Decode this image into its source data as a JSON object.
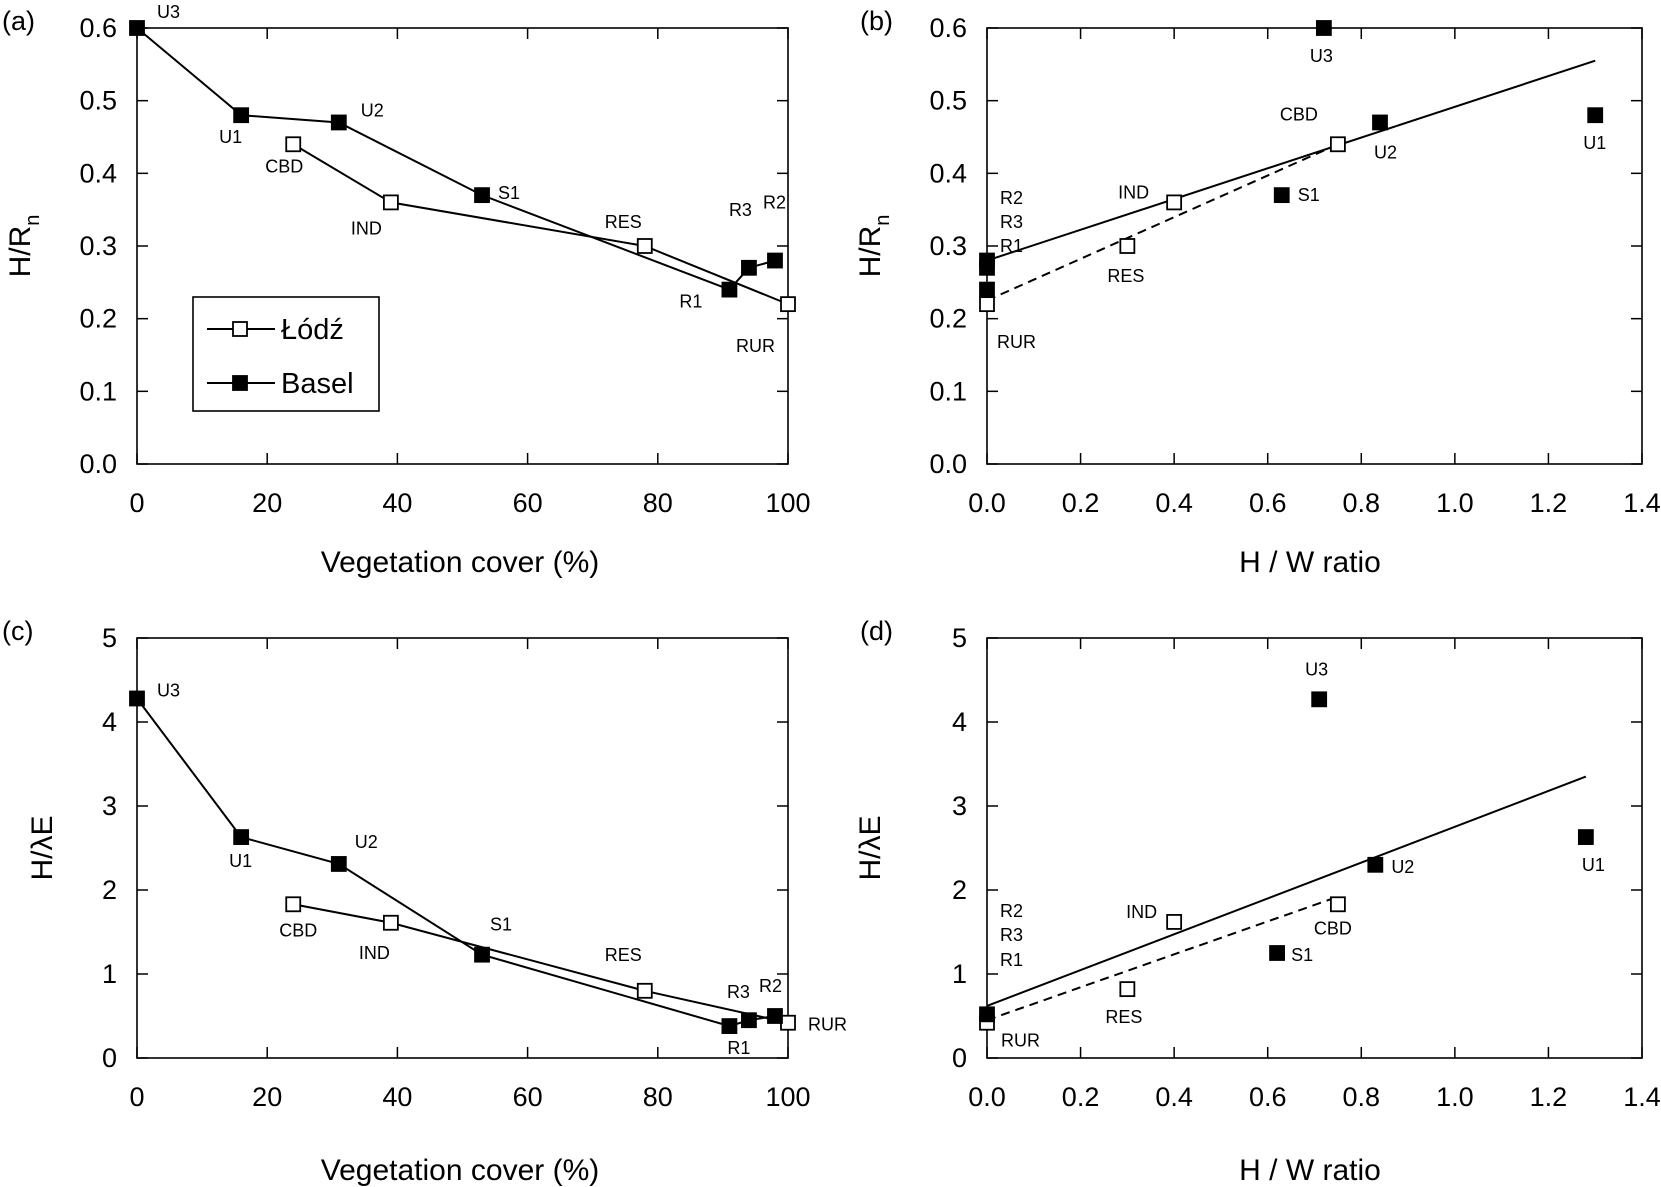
{
  "chart_data": [
    {
      "panel": "(a)",
      "type": "line",
      "xlabel": "Vegetation cover (%)",
      "ylabel": "H/R",
      "ylabel_sub": "n",
      "xlim": [
        0,
        100
      ],
      "ylim": [
        0,
        0.6
      ],
      "xticks": [
        "0",
        "20",
        "40",
        "60",
        "80",
        "100"
      ],
      "yticks": [
        "0.0",
        "0.1",
        "0.2",
        "0.3",
        "0.4",
        "0.5",
        "0.6"
      ],
      "legend": {
        "position": "lower-left",
        "entries": [
          "Łódź",
          "Basel"
        ]
      },
      "series": [
        {
          "name": "Łódź",
          "marker": "open-square",
          "points": [
            {
              "label": "CBD",
              "x": 24,
              "y": 0.44
            },
            {
              "label": "IND",
              "x": 39,
              "y": 0.36
            },
            {
              "label": "RES",
              "x": 78,
              "y": 0.3
            },
            {
              "label": "RUR",
              "x": 100,
              "y": 0.22
            }
          ]
        },
        {
          "name": "Basel",
          "marker": "filled-square",
          "points": [
            {
              "label": "U3",
              "x": 0,
              "y": 0.6
            },
            {
              "label": "U1",
              "x": 16,
              "y": 0.48
            },
            {
              "label": "U2",
              "x": 31,
              "y": 0.47
            },
            {
              "label": "S1",
              "x": 53,
              "y": 0.37
            },
            {
              "label": "R1",
              "x": 91,
              "y": 0.24
            },
            {
              "label": "R3",
              "x": 94,
              "y": 0.27
            },
            {
              "label": "R2",
              "x": 98,
              "y": 0.28
            }
          ]
        }
      ]
    },
    {
      "panel": "(b)",
      "type": "scatter",
      "xlabel": "H / W ratio",
      "ylabel": "H/R",
      "ylabel_sub": "n",
      "xlim": [
        0,
        1.4
      ],
      "ylim": [
        0,
        0.6
      ],
      "xticks": [
        "0.0",
        "0.2",
        "0.4",
        "0.6",
        "0.8",
        "1.0",
        "1.2",
        "1.4"
      ],
      "yticks": [
        "0.0",
        "0.1",
        "0.2",
        "0.3",
        "0.4",
        "0.5",
        "0.6"
      ],
      "series": [
        {
          "name": "Łódź",
          "marker": "open-square",
          "points": [
            {
              "label": "RUR",
              "x": 0,
              "y": 0.22
            },
            {
              "label": "RES",
              "x": 0.3,
              "y": 0.3
            },
            {
              "label": "IND",
              "x": 0.4,
              "y": 0.36
            },
            {
              "label": "CBD",
              "x": 0.75,
              "y": 0.44
            }
          ]
        },
        {
          "name": "Basel",
          "marker": "filled-square",
          "points": [
            {
              "label": "R1",
              "x": 0,
              "y": 0.24
            },
            {
              "label": "R3",
              "x": 0,
              "y": 0.27
            },
            {
              "label": "R2",
              "x": 0,
              "y": 0.28
            },
            {
              "label": "S1",
              "x": 0.63,
              "y": 0.37
            },
            {
              "label": "U3",
              "x": 0.72,
              "y": 0.6
            },
            {
              "label": "U2",
              "x": 0.84,
              "y": 0.47
            },
            {
              "label": "U1",
              "x": 1.3,
              "y": 0.48
            }
          ]
        }
      ],
      "fit_lines": [
        {
          "style": "solid",
          "from": [
            0,
            0.28
          ],
          "to": [
            1.3,
            0.555
          ]
        },
        {
          "style": "dashed",
          "from": [
            0,
            0.225
          ],
          "to": [
            0.75,
            0.44
          ]
        }
      ]
    },
    {
      "panel": "(c)",
      "type": "line",
      "xlabel": "Vegetation cover (%)",
      "ylabel": "H/λE",
      "xlim": [
        0,
        100
      ],
      "ylim": [
        0,
        5
      ],
      "xticks": [
        "0",
        "20",
        "40",
        "60",
        "80",
        "100"
      ],
      "yticks": [
        "0",
        "1",
        "2",
        "3",
        "4",
        "5"
      ],
      "series": [
        {
          "name": "Łódź",
          "marker": "open-square",
          "points": [
            {
              "label": "CBD",
              "x": 24,
              "y": 1.83
            },
            {
              "label": "IND",
              "x": 39,
              "y": 1.61
            },
            {
              "label": "RES",
              "x": 78,
              "y": 0.8
            },
            {
              "label": "RUR",
              "x": 100,
              "y": 0.42
            }
          ]
        },
        {
          "name": "Basel",
          "marker": "filled-square",
          "points": [
            {
              "label": "U3",
              "x": 0,
              "y": 4.28
            },
            {
              "label": "U1",
              "x": 16,
              "y": 2.63
            },
            {
              "label": "U2",
              "x": 31,
              "y": 2.31
            },
            {
              "label": "S1",
              "x": 53,
              "y": 1.23
            },
            {
              "label": "R1",
              "x": 91,
              "y": 0.38
            },
            {
              "label": "R3",
              "x": 94,
              "y": 0.45
            },
            {
              "label": "R2",
              "x": 98,
              "y": 0.5
            }
          ]
        }
      ]
    },
    {
      "panel": "(d)",
      "type": "scatter",
      "xlabel": "H / W ratio",
      "ylabel": "H/λE",
      "xlim": [
        0,
        1.4
      ],
      "ylim": [
        0,
        5
      ],
      "xticks": [
        "0.0",
        "0.2",
        "0.4",
        "0.6",
        "0.8",
        "1.0",
        "1.2",
        "1.4"
      ],
      "yticks": [
        "0",
        "1",
        "2",
        "3",
        "4",
        "5"
      ],
      "series": [
        {
          "name": "Łódź",
          "marker": "open-square",
          "points": [
            {
              "label": "RUR",
              "x": 0,
              "y": 0.42
            },
            {
              "label": "RES",
              "x": 0.3,
              "y": 0.82
            },
            {
              "label": "IND",
              "x": 0.4,
              "y": 1.62
            },
            {
              "label": "CBD",
              "x": 0.75,
              "y": 1.83
            }
          ]
        },
        {
          "name": "Basel",
          "marker": "filled-square",
          "points": [
            {
              "label": "R1",
              "x": 0,
              "y": 0.52
            },
            {
              "label": "S1",
              "x": 0.62,
              "y": 1.25
            },
            {
              "label": "U3",
              "x": 0.71,
              "y": 4.27
            },
            {
              "label": "U2",
              "x": 0.83,
              "y": 2.3
            },
            {
              "label": "U1",
              "x": 1.28,
              "y": 2.63
            }
          ]
        }
      ],
      "fit_lines": [
        {
          "style": "solid",
          "from": [
            0,
            0.62
          ],
          "to": [
            1.28,
            3.35
          ]
        },
        {
          "style": "dashed",
          "from": [
            0,
            0.45
          ],
          "to": [
            0.75,
            1.92
          ]
        }
      ]
    }
  ]
}
